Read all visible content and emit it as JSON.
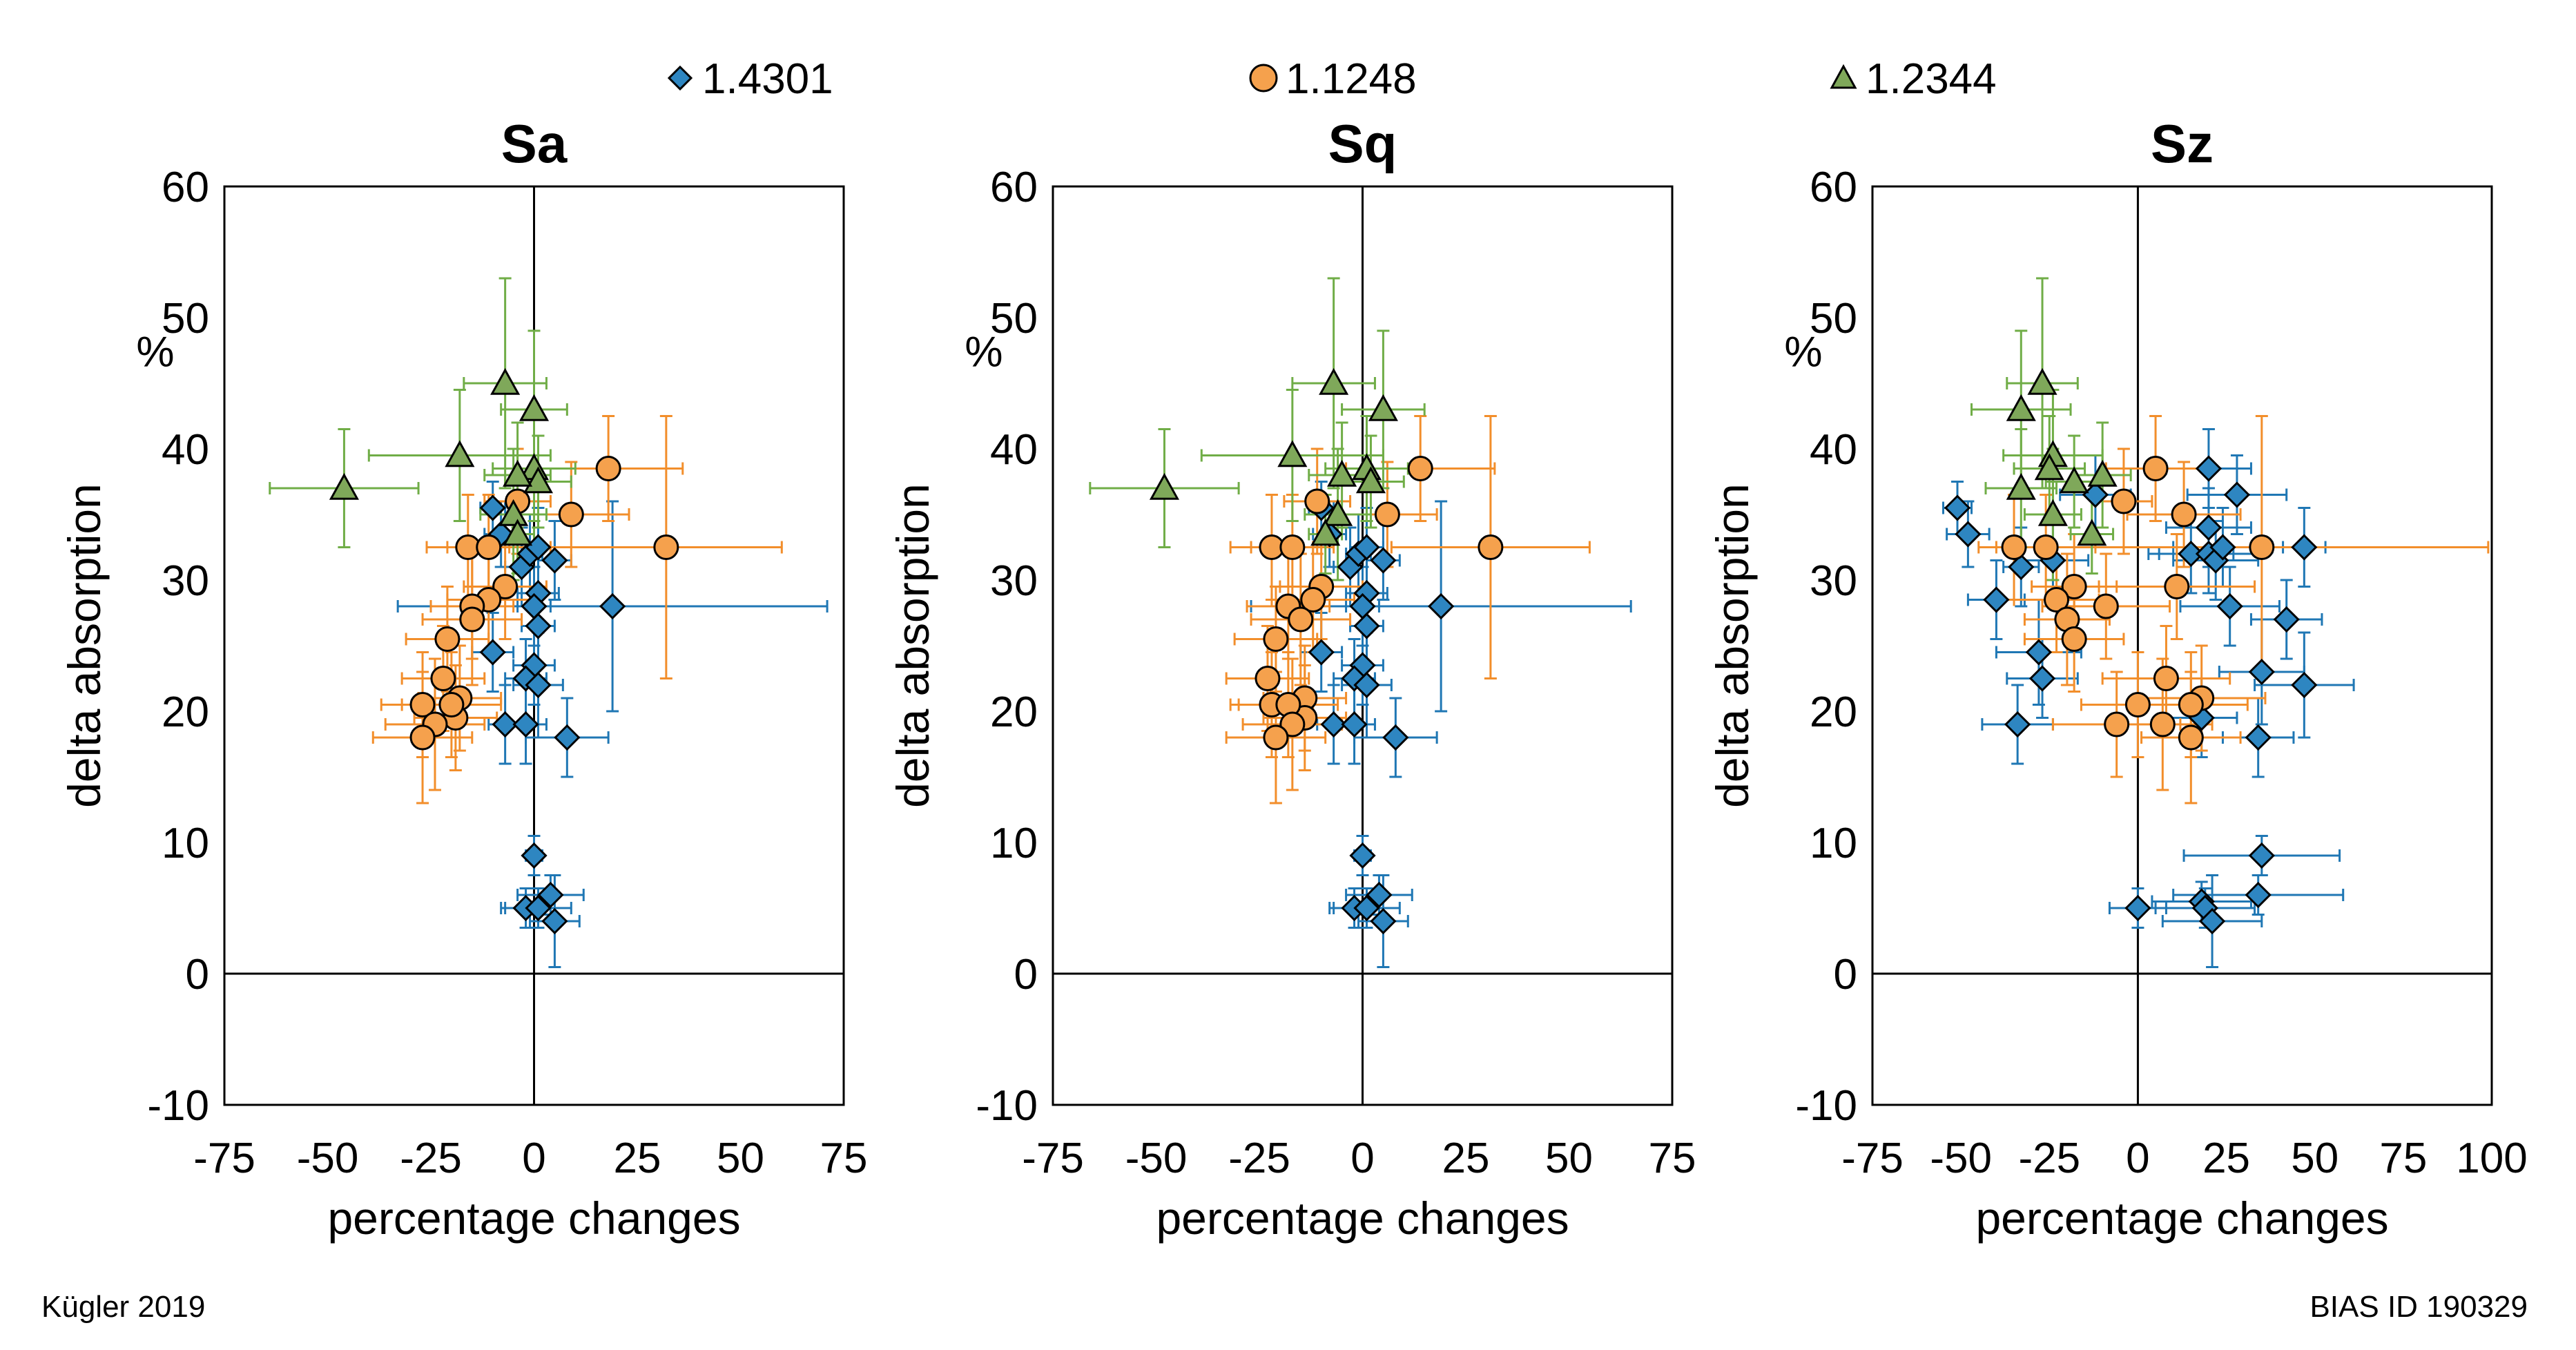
{
  "legend": [
    {
      "name": "1.4301",
      "marker": "diamond",
      "color": "#2e86c1",
      "errcolor": "#1f77b4"
    },
    {
      "name": "1.1248",
      "marker": "circle",
      "color": "#f5a14d",
      "errcolor": "#f28e2b"
    },
    {
      "name": "1.2344",
      "marker": "triangle",
      "color": "#7fa85a",
      "errcolor": "#70ad47"
    }
  ],
  "footer": {
    "left": "Kügler 2019",
    "right": "BIAS ID 190329"
  },
  "chart_data": [
    {
      "type": "scatter",
      "title": "Sa",
      "xlabel": "percentage changes",
      "ylabel": "delta absorption",
      "yunit": "%",
      "xlim": [
        -75,
        75
      ],
      "ylim": [
        -10,
        60
      ],
      "xticks": [
        -75,
        -50,
        -25,
        0,
        25,
        50,
        75
      ],
      "yticks": [
        -10,
        0,
        10,
        20,
        30,
        40,
        50,
        60
      ],
      "grid": false,
      "series": [
        {
          "name": "1.4301",
          "points": [
            [
              -10,
              35.5,
              3,
              2
            ],
            [
              -8,
              33.5,
              4,
              2.5
            ],
            [
              -3,
              31,
              4,
              3
            ],
            [
              -1,
              32,
              3,
              3
            ],
            [
              1,
              32.5,
              4,
              3
            ],
            [
              5,
              31.5,
              4,
              3
            ],
            [
              1,
              29,
              5,
              3
            ],
            [
              0,
              28,
              4,
              3
            ],
            [
              1,
              26.5,
              4,
              3
            ],
            [
              -10,
              24.5,
              5,
              3
            ],
            [
              0,
              23.5,
              5,
              3
            ],
            [
              -2,
              22.5,
              5,
              3
            ],
            [
              1,
              22,
              6,
              4
            ],
            [
              19,
              28,
              52,
              8
            ],
            [
              -7,
              19,
              4,
              3
            ],
            [
              -2,
              19,
              5,
              3
            ],
            [
              8,
              18,
              10,
              3
            ],
            [
              0,
              9,
              2,
              1.5
            ],
            [
              -2,
              5,
              6,
              1.5
            ],
            [
              1,
              5,
              8,
              1.5
            ],
            [
              4,
              6,
              8,
              1.5
            ],
            [
              5,
              4,
              6,
              3.5
            ]
          ]
        },
        {
          "name": "1.1248",
          "points": [
            [
              18,
              38.5,
              18,
              4
            ],
            [
              32,
              32.5,
              28,
              10
            ],
            [
              9,
              35,
              14,
              4
            ],
            [
              -4,
              36,
              8,
              4
            ],
            [
              -16,
              32.5,
              10,
              4
            ],
            [
              -11,
              32.5,
              10,
              4
            ],
            [
              -7,
              29.5,
              10,
              4
            ],
            [
              -11,
              28.5,
              10,
              4
            ],
            [
              -15,
              28,
              10,
              4
            ],
            [
              -15,
              27,
              12,
              5
            ],
            [
              -21,
              25.5,
              10,
              4
            ],
            [
              -22,
              22.5,
              10,
              4
            ],
            [
              -18,
              21,
              10,
              4
            ],
            [
              -27,
              20.5,
              10,
              4
            ],
            [
              -19,
              19.5,
              10,
              4
            ],
            [
              -20,
              20.5,
              12,
              4
            ],
            [
              -24,
              19,
              12,
              5
            ],
            [
              -27,
              18,
              12,
              5
            ]
          ]
        },
        {
          "name": "1.2344",
          "points": [
            [
              -46,
              37,
              18,
              4.5
            ],
            [
              -18,
              39.5,
              22,
              5
            ],
            [
              -7,
              45,
              10,
              8
            ],
            [
              0,
              43,
              8,
              6
            ],
            [
              0,
              38.5,
              10,
              4
            ],
            [
              1,
              37.5,
              8,
              3.5
            ],
            [
              -4,
              38,
              8,
              4
            ],
            [
              -5,
              35,
              8,
              5
            ],
            [
              -4,
              33.5,
              4,
              3
            ]
          ]
        }
      ]
    },
    {
      "type": "scatter",
      "title": "Sq",
      "xlabel": "percentage changes",
      "ylabel": "delta absorption",
      "yunit": "%",
      "xlim": [
        -75,
        75
      ],
      "ylim": [
        -10,
        60
      ],
      "xticks": [
        -75,
        -50,
        -25,
        0,
        25,
        50,
        75
      ],
      "yticks": [
        -10,
        0,
        10,
        20,
        30,
        40,
        50,
        60
      ],
      "grid": false,
      "series": [
        {
          "name": "1.4301",
          "points": [
            [
              -10,
              35.5,
              3,
              2
            ],
            [
              -8,
              33.5,
              4,
              2.5
            ],
            [
              -3,
              31,
              4,
              3
            ],
            [
              -1,
              32,
              3,
              3
            ],
            [
              1,
              32.5,
              4,
              3
            ],
            [
              5,
              31.5,
              4,
              3
            ],
            [
              1,
              29,
              5,
              3
            ],
            [
              0,
              28,
              4,
              3
            ],
            [
              1,
              26.5,
              4,
              3
            ],
            [
              -10,
              24.5,
              5,
              3
            ],
            [
              0,
              23.5,
              5,
              3
            ],
            [
              -2,
              22.5,
              5,
              3
            ],
            [
              1,
              22,
              6,
              4
            ],
            [
              19,
              28,
              46,
              8
            ],
            [
              -7,
              19,
              4,
              3
            ],
            [
              -2,
              19,
              5,
              3
            ],
            [
              8,
              18,
              10,
              3
            ],
            [
              0,
              9,
              2,
              1.5
            ],
            [
              -2,
              5,
              6,
              1.5
            ],
            [
              1,
              5,
              8,
              1.5
            ],
            [
              4,
              6,
              8,
              1.5
            ],
            [
              5,
              4,
              6,
              3.5
            ]
          ]
        },
        {
          "name": "1.1248",
          "points": [
            [
              14,
              38.5,
              18,
              4
            ],
            [
              31,
              32.5,
              24,
              10
            ],
            [
              6,
              35,
              12,
              4
            ],
            [
              -11,
              36,
              8,
              4
            ],
            [
              -22,
              32.5,
              10,
              4
            ],
            [
              -17,
              32.5,
              10,
              4
            ],
            [
              -10,
              29.5,
              10,
              4
            ],
            [
              -12,
              28.5,
              10,
              4
            ],
            [
              -18,
              28,
              10,
              4
            ],
            [
              -15,
              27,
              12,
              5
            ],
            [
              -21,
              25.5,
              10,
              4
            ],
            [
              -23,
              22.5,
              10,
              4
            ],
            [
              -14,
              21,
              10,
              4
            ],
            [
              -22,
              20.5,
              10,
              4
            ],
            [
              -14,
              19.5,
              10,
              4
            ],
            [
              -18,
              20.5,
              12,
              4
            ],
            [
              -17,
              19,
              12,
              5
            ],
            [
              -21,
              18,
              12,
              5
            ]
          ]
        },
        {
          "name": "1.2344",
          "points": [
            [
              -48,
              37,
              18,
              4.5
            ],
            [
              -17,
              39.5,
              22,
              5
            ],
            [
              -7,
              45,
              10,
              8
            ],
            [
              5,
              43,
              10,
              6
            ],
            [
              1,
              38.5,
              10,
              4
            ],
            [
              2,
              37.5,
              8,
              3.5
            ],
            [
              -5,
              38,
              8,
              4
            ],
            [
              -6,
              35,
              8,
              5
            ],
            [
              -9,
              33.5,
              4,
              3
            ]
          ]
        }
      ]
    },
    {
      "type": "scatter",
      "title": "Sz",
      "xlabel": "percentage changes",
      "ylabel": "delta absorption",
      "yunit": "%",
      "xlim": [
        -75,
        100
      ],
      "ylim": [
        -10,
        60
      ],
      "xticks": [
        -75,
        -50,
        -25,
        0,
        25,
        50,
        75,
        100
      ],
      "yticks": [
        -10,
        0,
        10,
        20,
        30,
        40,
        50,
        60
      ],
      "grid": false,
      "series": [
        {
          "name": "1.4301",
          "points": [
            [
              -51,
              35.5,
              4,
              2
            ],
            [
              -48,
              33.5,
              6,
              2.5
            ],
            [
              -33,
              31,
              5,
              3
            ],
            [
              -12,
              36.5,
              10,
              3
            ],
            [
              -24,
              31.5,
              10,
              3
            ],
            [
              -40,
              28.5,
              8,
              3
            ],
            [
              -28,
              24.5,
              12,
              4
            ],
            [
              -27,
              22.5,
              10,
              3
            ],
            [
              -34,
              19,
              10,
              3
            ],
            [
              20,
              38.5,
              12,
              3
            ],
            [
              28,
              36.5,
              14,
              3
            ],
            [
              15,
              32,
              12,
              3
            ],
            [
              20,
              32,
              14,
              3
            ],
            [
              22,
              31.5,
              12,
              3
            ],
            [
              20,
              34,
              12,
              3
            ],
            [
              24,
              32.5,
              14,
              3
            ],
            [
              47,
              32.5,
              6,
              3
            ],
            [
              26,
              28,
              14,
              3
            ],
            [
              42,
              27,
              10,
              3
            ],
            [
              35,
              23,
              12,
              4
            ],
            [
              47,
              22,
              14,
              4
            ],
            [
              18,
              19.5,
              10,
              3
            ],
            [
              34,
              18,
              10,
              3
            ],
            [
              35,
              9,
              22,
              1.5
            ],
            [
              0,
              5,
              8,
              1.5
            ],
            [
              18,
              5.5,
              14,
              1.5
            ],
            [
              19,
              5,
              14,
              1.5
            ],
            [
              21,
              4,
              14,
              3.5
            ],
            [
              34,
              6,
              24,
              1.5
            ]
          ]
        },
        {
          "name": "1.1248",
          "points": [
            [
              5,
              38.5,
              14,
              4
            ],
            [
              35,
              32.5,
              64,
              10
            ],
            [
              13,
              35,
              16,
              4
            ],
            [
              -4,
              36,
              8,
              4
            ],
            [
              -35,
              32.5,
              10,
              4
            ],
            [
              -26,
              32.5,
              14,
              4
            ],
            [
              -18,
              29.5,
              12,
              4
            ],
            [
              -23,
              28.5,
              12,
              4
            ],
            [
              -9,
              28,
              18,
              4
            ],
            [
              -20,
              27,
              12,
              5
            ],
            [
              -18,
              25.5,
              14,
              4
            ],
            [
              8,
              22.5,
              18,
              4
            ],
            [
              18,
              21,
              18,
              4
            ],
            [
              -6,
              19,
              18,
              4
            ],
            [
              0,
              20.5,
              16,
              4
            ],
            [
              15,
              20.5,
              16,
              4
            ],
            [
              7,
              19,
              14,
              5
            ],
            [
              15,
              18,
              14,
              5
            ],
            [
              11,
              29.5,
              22,
              4
            ]
          ]
        },
        {
          "name": "1.2344",
          "points": [
            [
              -33,
              37,
              10,
              4.5
            ],
            [
              -24,
              39.5,
              14,
              5
            ],
            [
              -27,
              45,
              10,
              8
            ],
            [
              -33,
              43,
              14,
              6
            ],
            [
              -25,
              38.5,
              10,
              4
            ],
            [
              -18,
              37.5,
              8,
              3.5
            ],
            [
              -10,
              38,
              8,
              4
            ],
            [
              -24,
              35,
              8,
              5
            ],
            [
              -13,
              33.5,
              6,
              3
            ]
          ]
        }
      ]
    }
  ]
}
